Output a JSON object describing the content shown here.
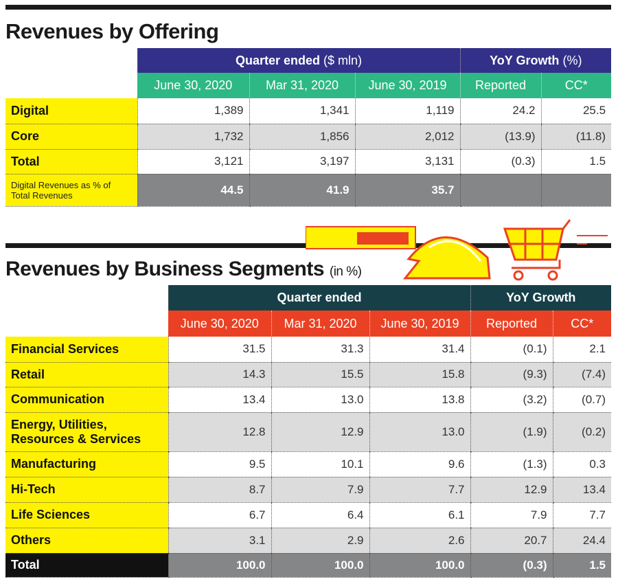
{
  "offering": {
    "title": "Revenues by Offering",
    "group_headers": {
      "quarter": "Quarter ended",
      "quarter_unit": "($ mln)",
      "yoy": "YoY Growth",
      "yoy_unit": "(%)"
    },
    "columns": [
      "June 30, 2020",
      "Mar 31, 2020",
      "June 30, 2019",
      "Reported",
      "CC*"
    ],
    "rows": [
      {
        "label": "Digital",
        "values": [
          "1,389",
          "1,341",
          "1,119",
          "24.2",
          "25.5"
        ]
      },
      {
        "label": "Core",
        "values": [
          "1,732",
          "1,856",
          "2,012",
          "(13.9)",
          "(11.8)"
        ]
      },
      {
        "label": "Total",
        "values": [
          "3,121",
          "3,197",
          "3,131",
          "(0.3)",
          "1.5"
        ]
      },
      {
        "label": "Digital Revenues as % of Total Revenues",
        "values": [
          "44.5",
          "41.9",
          "35.7",
          "",
          ""
        ]
      }
    ]
  },
  "segments": {
    "title": "Revenues by Business Segments",
    "title_unit": "(in %)",
    "group_headers": {
      "quarter": "Quarter ended",
      "yoy": "YoY Growth"
    },
    "columns": [
      "June 30, 2020",
      "Mar 31, 2020",
      "June 30, 2019",
      "Reported",
      "CC*"
    ],
    "rows": [
      {
        "label": "Financial Services",
        "values": [
          "31.5",
          "31.3",
          "31.4",
          "(0.1)",
          "2.1"
        ]
      },
      {
        "label": "Retail",
        "values": [
          "14.3",
          "15.5",
          "15.8",
          "(9.3)",
          "(7.4)"
        ]
      },
      {
        "label": "Communication",
        "values": [
          "13.4",
          "13.0",
          "13.8",
          "(3.2)",
          "(0.7)"
        ]
      },
      {
        "label": "Energy, Utilities, Resources & Services",
        "values": [
          "12.8",
          "12.9",
          "13.0",
          "(1.9)",
          "(0.2)"
        ]
      },
      {
        "label": "Manufacturing",
        "values": [
          "9.5",
          "10.1",
          "9.6",
          "(1.3)",
          "0.3"
        ]
      },
      {
        "label": "Hi-Tech",
        "values": [
          "8.7",
          "7.9",
          "7.7",
          "12.9",
          "13.4"
        ]
      },
      {
        "label": "Life Sciences",
        "values": [
          "6.7",
          "6.4",
          "6.1",
          "7.9",
          "7.7"
        ]
      },
      {
        "label": "Others",
        "values": [
          "3.1",
          "2.9",
          "2.6",
          "20.7",
          "24.4"
        ]
      },
      {
        "label": "Total",
        "values": [
          "100.0",
          "100.0",
          "100.0",
          "(0.3)",
          "1.5"
        ]
      }
    ]
  },
  "icons": [
    "hard-hat-icon",
    "shopping-cart-icon",
    "calculator-circuit-icon"
  ],
  "colors": {
    "navy": "#33308a",
    "green": "#2db886",
    "yellow": "#fef200",
    "gray": "#858688",
    "teal": "#173f48",
    "orange": "#ea4124"
  }
}
